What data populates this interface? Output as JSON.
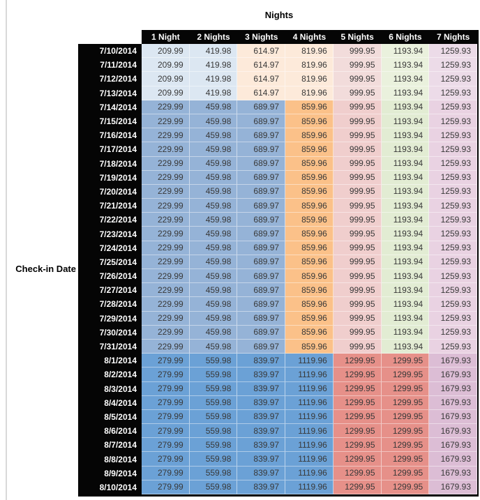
{
  "title": "Nights",
  "row_axis_label": "Check-in Date",
  "table": {
    "columns": [
      "1 Night",
      "2 Nights",
      "3 Nights",
      "4 Nights",
      "5 Nights",
      "6 Nights",
      "7 Nights"
    ],
    "group_colors": {
      "early_july": [
        "#dce7f2",
        "#dce7f2",
        "#fdeada",
        "#fdeada",
        "#f2dcdb",
        "#eaf1dd",
        "#ecdbe8"
      ],
      "mid_july": [
        "#95b3d7",
        "#95b3d7",
        "#95b3d7",
        "#fbc189",
        "#f0cecd",
        "#e2ecd3",
        "#e9d2e2"
      ],
      "august": [
        "#6ba1d6",
        "#6ba1d6",
        "#6ba1d6",
        "#6ba1d6",
        "#e69089",
        "#e69089",
        "#dcbdd5"
      ]
    },
    "header_bg": "#050505",
    "header_text": "#ffffff",
    "rows": [
      {
        "date": "7/10/2014",
        "group": "early_july",
        "values": [
          "209.99",
          "419.98",
          "614.97",
          "819.96",
          "999.95",
          "1193.94",
          "1259.93"
        ]
      },
      {
        "date": "7/11/2014",
        "group": "early_july",
        "values": [
          "209.99",
          "419.98",
          "614.97",
          "819.96",
          "999.95",
          "1193.94",
          "1259.93"
        ]
      },
      {
        "date": "7/12/2014",
        "group": "early_july",
        "values": [
          "209.99",
          "419.98",
          "614.97",
          "819.96",
          "999.95",
          "1193.94",
          "1259.93"
        ]
      },
      {
        "date": "7/13/2014",
        "group": "early_july",
        "values": [
          "209.99",
          "419.98",
          "614.97",
          "819.96",
          "999.95",
          "1193.94",
          "1259.93"
        ]
      },
      {
        "date": "7/14/2014",
        "group": "mid_july",
        "values": [
          "229.99",
          "459.98",
          "689.97",
          "859.96",
          "999.95",
          "1193.94",
          "1259.93"
        ]
      },
      {
        "date": "7/15/2014",
        "group": "mid_july",
        "values": [
          "229.99",
          "459.98",
          "689.97",
          "859.96",
          "999.95",
          "1193.94",
          "1259.93"
        ]
      },
      {
        "date": "7/16/2014",
        "group": "mid_july",
        "values": [
          "229.99",
          "459.98",
          "689.97",
          "859.96",
          "999.95",
          "1193.94",
          "1259.93"
        ]
      },
      {
        "date": "7/17/2014",
        "group": "mid_july",
        "values": [
          "229.99",
          "459.98",
          "689.97",
          "859.96",
          "999.95",
          "1193.94",
          "1259.93"
        ]
      },
      {
        "date": "7/18/2014",
        "group": "mid_july",
        "values": [
          "229.99",
          "459.98",
          "689.97",
          "859.96",
          "999.95",
          "1193.94",
          "1259.93"
        ]
      },
      {
        "date": "7/19/2014",
        "group": "mid_july",
        "values": [
          "229.99",
          "459.98",
          "689.97",
          "859.96",
          "999.95",
          "1193.94",
          "1259.93"
        ]
      },
      {
        "date": "7/20/2014",
        "group": "mid_july",
        "values": [
          "229.99",
          "459.98",
          "689.97",
          "859.96",
          "999.95",
          "1193.94",
          "1259.93"
        ]
      },
      {
        "date": "7/21/2014",
        "group": "mid_july",
        "values": [
          "229.99",
          "459.98",
          "689.97",
          "859.96",
          "999.95",
          "1193.94",
          "1259.93"
        ]
      },
      {
        "date": "7/22/2014",
        "group": "mid_july",
        "values": [
          "229.99",
          "459.98",
          "689.97",
          "859.96",
          "999.95",
          "1193.94",
          "1259.93"
        ]
      },
      {
        "date": "7/23/2014",
        "group": "mid_july",
        "values": [
          "229.99",
          "459.98",
          "689.97",
          "859.96",
          "999.95",
          "1193.94",
          "1259.93"
        ]
      },
      {
        "date": "7/24/2014",
        "group": "mid_july",
        "values": [
          "229.99",
          "459.98",
          "689.97",
          "859.96",
          "999.95",
          "1193.94",
          "1259.93"
        ]
      },
      {
        "date": "7/25/2014",
        "group": "mid_july",
        "values": [
          "229.99",
          "459.98",
          "689.97",
          "859.96",
          "999.95",
          "1193.94",
          "1259.93"
        ]
      },
      {
        "date": "7/26/2014",
        "group": "mid_july",
        "values": [
          "229.99",
          "459.98",
          "689.97",
          "859.96",
          "999.95",
          "1193.94",
          "1259.93"
        ]
      },
      {
        "date": "7/27/2014",
        "group": "mid_july",
        "values": [
          "229.99",
          "459.98",
          "689.97",
          "859.96",
          "999.95",
          "1193.94",
          "1259.93"
        ]
      },
      {
        "date": "7/28/2014",
        "group": "mid_july",
        "values": [
          "229.99",
          "459.98",
          "689.97",
          "859.96",
          "999.95",
          "1193.94",
          "1259.93"
        ]
      },
      {
        "date": "7/29/2014",
        "group": "mid_july",
        "values": [
          "229.99",
          "459.98",
          "689.97",
          "859.96",
          "999.95",
          "1193.94",
          "1259.93"
        ]
      },
      {
        "date": "7/30/2014",
        "group": "mid_july",
        "values": [
          "229.99",
          "459.98",
          "689.97",
          "859.96",
          "999.95",
          "1193.94",
          "1259.93"
        ]
      },
      {
        "date": "7/31/2014",
        "group": "mid_july",
        "values": [
          "229.99",
          "459.98",
          "689.97",
          "859.96",
          "999.95",
          "1193.94",
          "1259.93"
        ]
      },
      {
        "date": "8/1/2014",
        "group": "august",
        "values": [
          "279.99",
          "559.98",
          "839.97",
          "1119.96",
          "1299.95",
          "1299.95",
          "1679.93"
        ]
      },
      {
        "date": "8/2/2014",
        "group": "august",
        "values": [
          "279.99",
          "559.98",
          "839.97",
          "1119.96",
          "1299.95",
          "1299.95",
          "1679.93"
        ]
      },
      {
        "date": "8/3/2014",
        "group": "august",
        "values": [
          "279.99",
          "559.98",
          "839.97",
          "1119.96",
          "1299.95",
          "1299.95",
          "1679.93"
        ]
      },
      {
        "date": "8/4/2014",
        "group": "august",
        "values": [
          "279.99",
          "559.98",
          "839.97",
          "1119.96",
          "1299.95",
          "1299.95",
          "1679.93"
        ]
      },
      {
        "date": "8/5/2014",
        "group": "august",
        "values": [
          "279.99",
          "559.98",
          "839.97",
          "1119.96",
          "1299.95",
          "1299.95",
          "1679.93"
        ]
      },
      {
        "date": "8/6/2014",
        "group": "august",
        "values": [
          "279.99",
          "559.98",
          "839.97",
          "1119.96",
          "1299.95",
          "1299.95",
          "1679.93"
        ]
      },
      {
        "date": "8/7/2014",
        "group": "august",
        "values": [
          "279.99",
          "559.98",
          "839.97",
          "1119.96",
          "1299.95",
          "1299.95",
          "1679.93"
        ]
      },
      {
        "date": "8/8/2014",
        "group": "august",
        "values": [
          "279.99",
          "559.98",
          "839.97",
          "1119.96",
          "1299.95",
          "1299.95",
          "1679.93"
        ]
      },
      {
        "date": "8/9/2014",
        "group": "august",
        "values": [
          "279.99",
          "559.98",
          "839.97",
          "1119.96",
          "1299.95",
          "1299.95",
          "1679.93"
        ]
      },
      {
        "date": "8/10/2014",
        "group": "august",
        "values": [
          "279.99",
          "559.98",
          "839.97",
          "1119.96",
          "1299.95",
          "1299.95",
          "1679.93"
        ]
      }
    ]
  }
}
